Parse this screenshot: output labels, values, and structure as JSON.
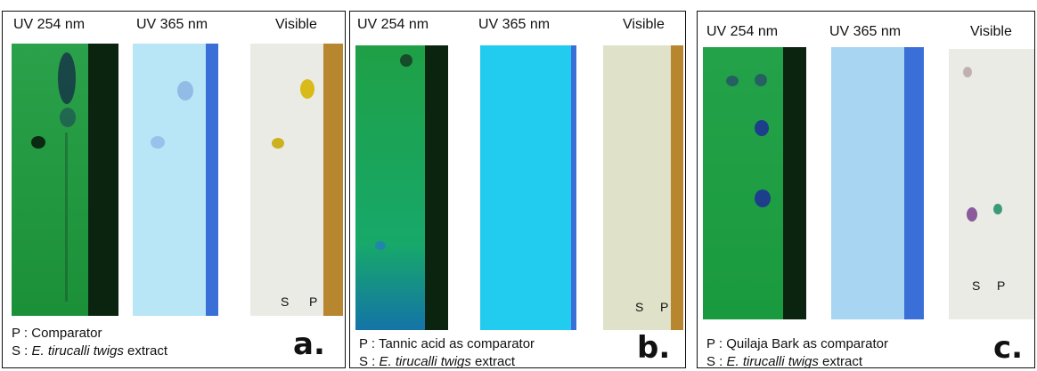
{
  "panels": [
    {
      "headers": [
        "UV 254 nm",
        "UV 365 nm",
        "Visible"
      ],
      "legend_p": "P : Comparator",
      "legend_s_prefix": "S : ",
      "legend_s_italic": "E. tirucalli twigs",
      "legend_s_suffix": " extract",
      "letter": "a.",
      "lane_s": "S",
      "lane_p": "P"
    },
    {
      "headers": [
        "UV 254 nm",
        "UV 365 nm",
        "Visible"
      ],
      "legend_p": "P : Tannic acid as comparator",
      "legend_s_prefix": "S : ",
      "legend_s_italic": "E. tirucalli twigs",
      "legend_s_suffix": " extract",
      "letter": "b.",
      "lane_s": "S",
      "lane_p": "P"
    },
    {
      "headers": [
        "UV 254 nm",
        "UV 365 nm",
        "Visible"
      ],
      "legend_p": "P : Quilaja Bark as comparator",
      "legend_s_prefix": "S : ",
      "legend_s_italic": "E. tirucalli twigs",
      "legend_s_suffix": " extract",
      "letter": "c.",
      "lane_s": "S",
      "lane_p": "P"
    }
  ],
  "colors": {
    "uv254": "#1e9a3c",
    "uv365": "#b8e6f6",
    "uv365_b": "#22ccee",
    "uv365_c": "#a8d6f2",
    "visible": "#ebebe6",
    "visible_b": "#dfe2c8",
    "ruler_blue": "#3b6fd8",
    "ruler_wood": "#b8862e",
    "dark_strip": "#0b2410"
  }
}
